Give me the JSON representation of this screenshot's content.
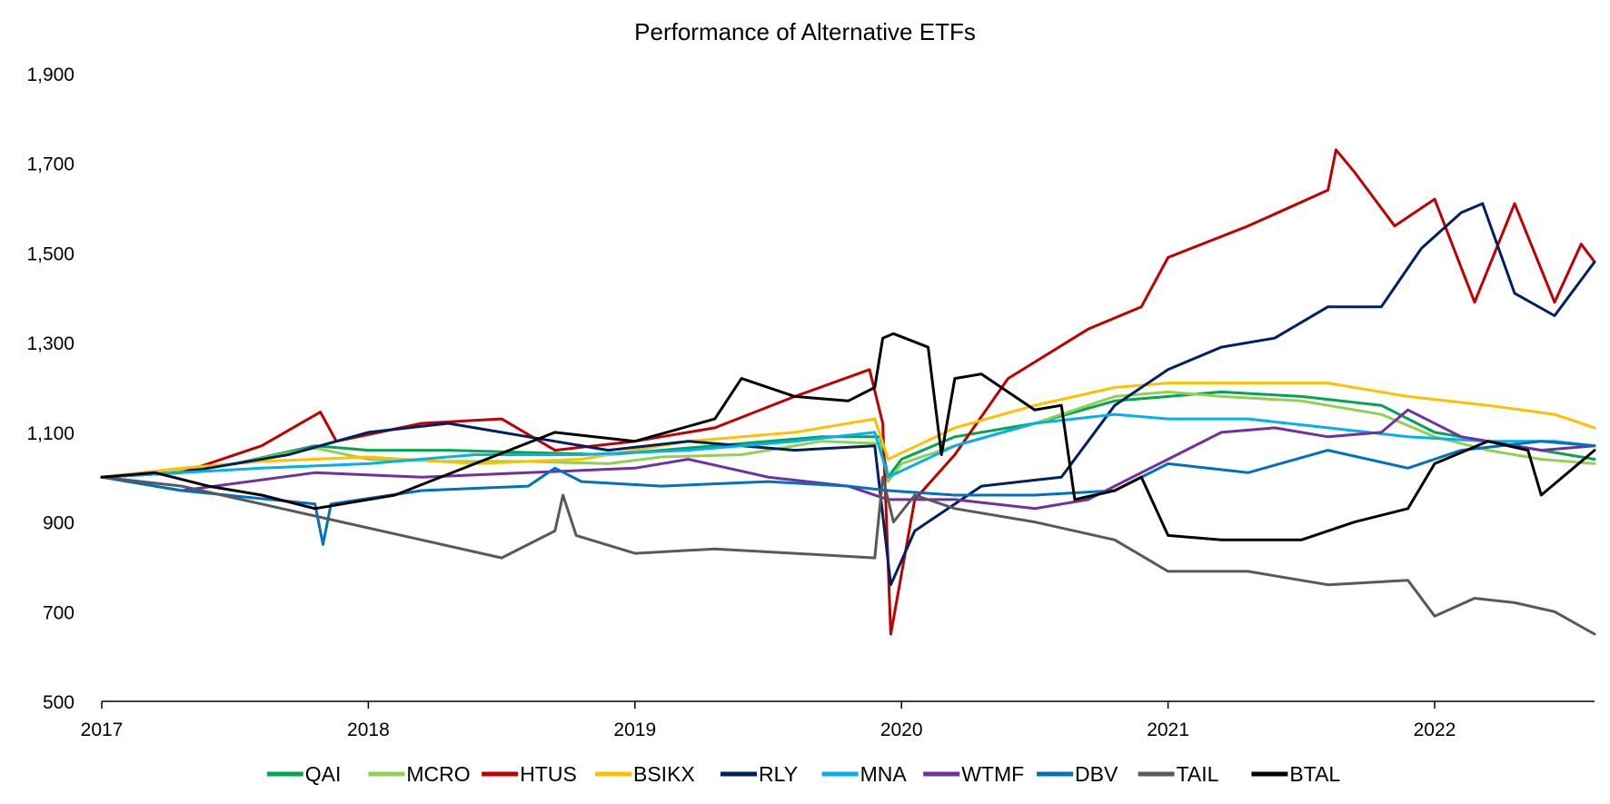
{
  "chart_data": {
    "type": "line",
    "title": "Performance of Alternative ETFs",
    "xlabel": "",
    "ylabel": "",
    "x_ticks": [
      "2017",
      "2018",
      "2019",
      "2020",
      "2021",
      "2022"
    ],
    "x_tick_values": [
      2017,
      2018,
      2019,
      2020,
      2021,
      2022
    ],
    "xlim": [
      2017,
      2022.6
    ],
    "y_ticks": [
      "500",
      "700",
      "900",
      "1,100",
      "1,300",
      "1,500",
      "1,700",
      "1,900"
    ],
    "y_tick_values": [
      500,
      700,
      900,
      1100,
      1300,
      1500,
      1700,
      1900
    ],
    "ylim": [
      500,
      1900
    ],
    "grid": false,
    "legend_position": "bottom",
    "series": [
      {
        "name": "QAI",
        "color": "#00A651",
        "x": [
          2017,
          2017.25,
          2017.5,
          2017.8,
          2018,
          2018.3,
          2018.6,
          2018.9,
          2019.1,
          2019.4,
          2019.7,
          2019.92,
          2019.95,
          2020.0,
          2020.2,
          2020.5,
          2020.8,
          2021.0,
          2021.2,
          2021.5,
          2021.8,
          2022.0,
          2022.2,
          2022.4,
          2022.6
        ],
        "y": [
          1000,
          1010,
          1030,
          1070,
          1060,
          1060,
          1055,
          1050,
          1060,
          1075,
          1090,
          1090,
          1000,
          1040,
          1090,
          1120,
          1170,
          1180,
          1190,
          1180,
          1160,
          1100,
          1080,
          1060,
          1040
        ]
      },
      {
        "name": "MCRO",
        "color": "#92D050",
        "x": [
          2017,
          2017.25,
          2017.5,
          2017.8,
          2018,
          2018.3,
          2018.6,
          2018.9,
          2019.1,
          2019.4,
          2019.7,
          2019.92,
          2019.95,
          2020.0,
          2020.2,
          2020.5,
          2020.8,
          2021.0,
          2021.2,
          2021.5,
          2021.8,
          2022.0,
          2022.2,
          2022.4,
          2022.6
        ],
        "y": [
          1000,
          1010,
          1030,
          1065,
          1040,
          1035,
          1035,
          1030,
          1045,
          1050,
          1080,
          1075,
          990,
          1030,
          1070,
          1120,
          1180,
          1190,
          1180,
          1170,
          1140,
          1090,
          1060,
          1040,
          1030
        ]
      },
      {
        "name": "HTUS",
        "color": "#C00000",
        "x": [
          2017,
          2017.3,
          2017.6,
          2017.82,
          2017.88,
          2018.2,
          2018.5,
          2018.7,
          2019.0,
          2019.3,
          2019.6,
          2019.88,
          2019.93,
          2019.96,
          2020.05,
          2020.2,
          2020.4,
          2020.7,
          2020.9,
          2021.0,
          2021.3,
          2021.6,
          2021.63,
          2021.7,
          2021.85,
          2022.0,
          2022.15,
          2022.3,
          2022.45,
          2022.55,
          2022.6
        ],
        "y": [
          1000,
          1010,
          1070,
          1145,
          1080,
          1120,
          1130,
          1060,
          1080,
          1110,
          1180,
          1240,
          1120,
          650,
          950,
          1050,
          1220,
          1330,
          1380,
          1490,
          1560,
          1640,
          1730,
          1680,
          1560,
          1620,
          1390,
          1610,
          1390,
          1520,
          1480
        ]
      },
      {
        "name": "BSIKX",
        "color": "#FFC000",
        "x": [
          2017,
          2017.3,
          2017.6,
          2018.0,
          2018.4,
          2018.8,
          2019.2,
          2019.6,
          2019.9,
          2019.95,
          2020.2,
          2020.5,
          2020.8,
          2021.0,
          2021.3,
          2021.6,
          2021.9,
          2022.2,
          2022.45,
          2022.6
        ],
        "y": [
          1000,
          1020,
          1035,
          1045,
          1030,
          1040,
          1080,
          1100,
          1130,
          1040,
          1110,
          1160,
          1200,
          1210,
          1210,
          1210,
          1180,
          1160,
          1140,
          1110
        ]
      },
      {
        "name": "RLY",
        "color": "#002060",
        "x": [
          2017,
          2017.3,
          2017.7,
          2018.0,
          2018.3,
          2018.6,
          2018.9,
          2019.2,
          2019.6,
          2019.9,
          2019.96,
          2020.05,
          2020.3,
          2020.6,
          2020.8,
          2021.0,
          2021.2,
          2021.4,
          2021.6,
          2021.8,
          2021.95,
          2022.1,
          2022.18,
          2022.3,
          2022.45,
          2022.6
        ],
        "y": [
          1000,
          1010,
          1050,
          1100,
          1120,
          1090,
          1060,
          1080,
          1060,
          1070,
          760,
          880,
          980,
          1000,
          1160,
          1240,
          1290,
          1310,
          1380,
          1380,
          1510,
          1590,
          1610,
          1410,
          1360,
          1480
        ]
      },
      {
        "name": "MNA",
        "color": "#00B0F0",
        "x": [
          2017,
          2017.3,
          2017.6,
          2018.0,
          2018.4,
          2018.8,
          2019.2,
          2019.6,
          2019.9,
          2019.95,
          2020.2,
          2020.5,
          2020.8,
          2021.0,
          2021.3,
          2021.6,
          2021.9,
          2022.2,
          2022.45,
          2022.6
        ],
        "y": [
          1000,
          1010,
          1020,
          1030,
          1050,
          1050,
          1060,
          1080,
          1100,
          1000,
          1070,
          1120,
          1140,
          1130,
          1130,
          1110,
          1090,
          1080,
          1080,
          1070
        ]
      },
      {
        "name": "WTMF",
        "color": "#7030A0",
        "x": [
          2017,
          2017.3,
          2017.8,
          2018.2,
          2018.6,
          2019.0,
          2019.2,
          2019.5,
          2019.8,
          2019.95,
          2020.2,
          2020.5,
          2020.7,
          2021.0,
          2021.2,
          2021.4,
          2021.6,
          2021.8,
          2021.9,
          2022.1,
          2022.4,
          2022.6
        ],
        "y": [
          1000,
          970,
          1010,
          1000,
          1010,
          1020,
          1040,
          1000,
          980,
          950,
          950,
          930,
          950,
          1040,
          1100,
          1110,
          1090,
          1100,
          1150,
          1090,
          1060,
          1070
        ]
      },
      {
        "name": "DBV",
        "color": "#0070C0",
        "x": [
          2017,
          2017.3,
          2017.8,
          2017.83,
          2017.86,
          2018.2,
          2018.6,
          2018.7,
          2018.8,
          2019.1,
          2019.5,
          2019.8,
          2019.95,
          2020.2,
          2020.5,
          2020.8,
          2021.0,
          2021.3,
          2021.6,
          2021.9,
          2022.1,
          2022.4,
          2022.6
        ],
        "y": [
          1000,
          970,
          940,
          850,
          940,
          970,
          980,
          1020,
          990,
          980,
          990,
          980,
          970,
          960,
          960,
          970,
          1030,
          1010,
          1060,
          1020,
          1060,
          1080,
          1070
        ]
      },
      {
        "name": "TAIL",
        "color": "#595959",
        "x": [
          2017,
          2017.3,
          2017.6,
          2017.9,
          2018.2,
          2018.5,
          2018.7,
          2018.73,
          2018.78,
          2019.0,
          2019.3,
          2019.6,
          2019.9,
          2019.93,
          2019.97,
          2020.05,
          2020.2,
          2020.5,
          2020.8,
          2021.0,
          2021.3,
          2021.6,
          2021.9,
          2022.0,
          2022.15,
          2022.3,
          2022.45,
          2022.6
        ],
        "y": [
          1000,
          980,
          940,
          900,
          860,
          820,
          880,
          960,
          870,
          830,
          840,
          830,
          820,
          1000,
          900,
          960,
          930,
          900,
          860,
          790,
          790,
          760,
          770,
          690,
          730,
          720,
          700,
          650
        ]
      },
      {
        "name": "BTAL",
        "color": "#000000",
        "x": [
          2017,
          2017.2,
          2017.4,
          2017.6,
          2017.8,
          2018.1,
          2018.4,
          2018.7,
          2019.0,
          2019.3,
          2019.4,
          2019.6,
          2019.8,
          2019.9,
          2019.93,
          2019.97,
          2020.1,
          2020.15,
          2020.2,
          2020.3,
          2020.5,
          2020.6,
          2020.65,
          2020.8,
          2020.9,
          2021.0,
          2021.2,
          2021.5,
          2021.7,
          2021.9,
          2022.0,
          2022.2,
          2022.35,
          2022.4,
          2022.6
        ],
        "y": [
          1000,
          1010,
          980,
          960,
          930,
          960,
          1030,
          1100,
          1080,
          1130,
          1220,
          1180,
          1170,
          1200,
          1310,
          1320,
          1290,
          1050,
          1220,
          1230,
          1150,
          1160,
          950,
          970,
          1000,
          870,
          860,
          860,
          900,
          930,
          1030,
          1080,
          1060,
          960,
          1060
        ]
      }
    ]
  }
}
